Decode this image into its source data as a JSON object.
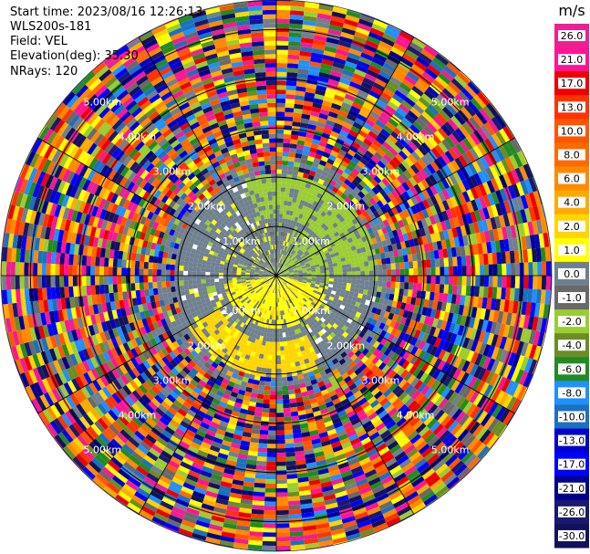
{
  "header": {
    "start_time": "Start time: 2023/08/16 12:26:13",
    "instrument": "WLS200s-181",
    "field": "Field: VEL",
    "elevation": "Elevation(deg): 35.30",
    "nrays": "NRays: 120"
  },
  "chart_data": {
    "type": "heatmap",
    "projection": "polar-ppi",
    "field": "VEL",
    "nrays": 120,
    "elevation_deg": 35.3,
    "range_rings_km": [
      1.0,
      2.0,
      3.0,
      4.0,
      5.0
    ],
    "range_ring_labels": [
      "1.00km",
      "2.00km",
      "3.00km",
      "4.00km",
      "5.00km"
    ],
    "max_range_km": 5.6,
    "colorbar": {
      "unit": "m/s",
      "tick_labels": [
        "26.0",
        "21.0",
        "17.0",
        "13.0",
        "10.0",
        "8.0",
        "6.0",
        "4.0",
        "2.0",
        "1.0",
        "0.0",
        "-1.0",
        "-2.0",
        "-4.0",
        "-6.0",
        "-8.0",
        "-10.0",
        "-13.0",
        "-17.0",
        "-21.0",
        "-26.0",
        "-30.0"
      ],
      "colors": [
        "#ee1e93",
        "#ff1493",
        "#ee0000",
        "#ff3300",
        "#ff5500",
        "#ff6a00",
        "#ff8a00",
        "#ffaa00",
        "#ffd500",
        "#ffff00",
        "#708090",
        "#696969",
        "#9acd32",
        "#6b8e23",
        "#228b22",
        "#1e90ff",
        "#1c70c0",
        "#0000cd",
        "#0000ff",
        "#00008b",
        "#191970",
        "#12125a"
      ]
    },
    "regions": [
      {
        "range_km": [
          0.0,
          1.0
        ],
        "description": "mixed yellow / grey / green near-field",
        "dominant": [
          "#ffff00",
          "#708090",
          "#9acd32"
        ]
      },
      {
        "range_km": [
          1.0,
          2.0
        ],
        "description": "grey with green sector to north-east and yellow band to south",
        "dominant": [
          "#708090",
          "#9acd32",
          "#ffd500"
        ]
      },
      {
        "range_km": [
          2.0,
          5.6
        ],
        "description": "noisy full-spectrum values",
        "dominant": "all"
      }
    ]
  }
}
